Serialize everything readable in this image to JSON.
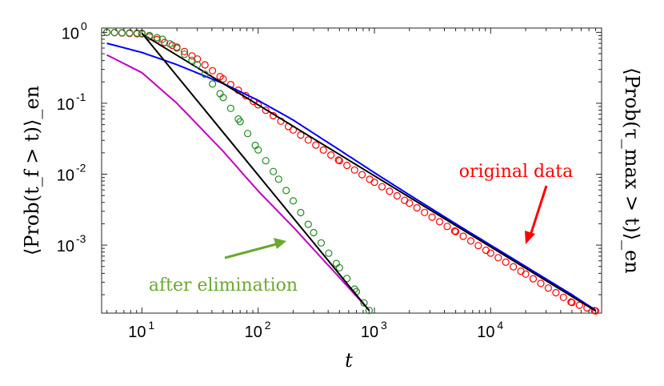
{
  "chart_data": {
    "type": "line",
    "xlabel": "t",
    "ylabel_left": "⟨Prob(t_f > t)⟩_en",
    "ylabel_right": "⟨Prob(τ_max > t)⟩_en",
    "x_scale": "log",
    "y_scale": "log",
    "xlim": [
      4.5,
      90000
    ],
    "ylim": [
      0.00011,
      1.15
    ],
    "grid": false,
    "x_ticks": [
      {
        "value": 10,
        "base": "10",
        "exp": "1"
      },
      {
        "value": 100,
        "base": "10",
        "exp": "2"
      },
      {
        "value": 1000,
        "base": "10",
        "exp": "3"
      },
      {
        "value": 10000,
        "base": "10",
        "exp": "4"
      }
    ],
    "y_ticks": [
      {
        "value": 1,
        "base": "10",
        "exp": "0"
      },
      {
        "value": 0.1,
        "base": "10",
        "exp": "-1"
      },
      {
        "value": 0.01,
        "base": "10",
        "exp": "-2"
      },
      {
        "value": 0.001,
        "base": "10",
        "exp": "-3"
      }
    ],
    "series": [
      {
        "kind": "markers",
        "color": "#ff0000",
        "x": [
          5,
          10,
          20,
          30,
          50,
          100,
          200,
          500,
          1000,
          2000,
          5000,
          10000,
          20000,
          50000,
          80000
        ],
        "y": [
          1.0,
          0.95,
          0.62,
          0.42,
          0.22,
          0.095,
          0.042,
          0.0155,
          0.0077,
          0.0039,
          0.00155,
          0.00077,
          0.00039,
          0.000155,
          0.000118
        ]
      },
      {
        "kind": "line",
        "color": "#0000ff",
        "x": [
          5,
          10,
          20,
          50,
          100,
          200,
          500,
          1000,
          2000,
          5000,
          10000,
          20000,
          50000,
          80000
        ],
        "y": [
          0.7,
          0.52,
          0.35,
          0.19,
          0.11,
          0.058,
          0.022,
          0.0105,
          0.0051,
          0.002,
          0.001,
          0.0005,
          0.0002,
          0.000121
        ]
      },
      {
        "kind": "line",
        "color": "#000000",
        "x": [
          10,
          80000
        ],
        "y": [
          0.95,
          0.000118
        ]
      },
      {
        "kind": "markers",
        "color": "#228b22",
        "x": [
          5,
          10,
          15,
          20,
          30,
          50,
          70,
          100,
          150,
          200,
          300,
          500,
          700,
          900
        ],
        "y": [
          1.0,
          0.97,
          0.8,
          0.6,
          0.35,
          0.12,
          0.055,
          0.022,
          0.0085,
          0.0042,
          0.0015,
          0.00048,
          0.00022,
          0.00012
        ]
      },
      {
        "kind": "line",
        "color": "#c000c0",
        "x": [
          5,
          10,
          20,
          50,
          100,
          200,
          500,
          900
        ],
        "y": [
          0.48,
          0.27,
          0.1,
          0.021,
          0.0058,
          0.0018,
          0.00035,
          0.000121
        ]
      },
      {
        "kind": "line",
        "color": "#000000",
        "x": [
          10,
          900
        ],
        "y": [
          0.97,
          0.00012
        ]
      }
    ],
    "annotations": [
      {
        "text": "original data",
        "color": "#ff0000"
      },
      {
        "text": "after elimination",
        "color": "#6aa82e"
      }
    ]
  }
}
